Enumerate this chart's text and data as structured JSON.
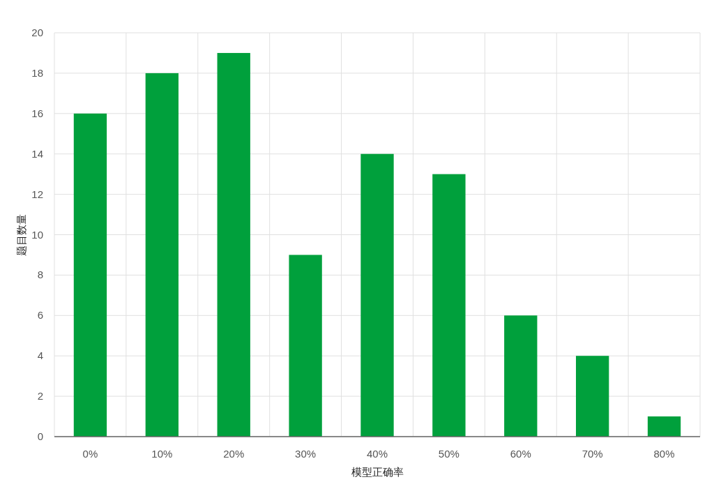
{
  "chart_data": {
    "type": "bar",
    "xlabel": "模型正确率",
    "ylabel": "题目数量",
    "categories": [
      "0%",
      "10%",
      "20%",
      "30%",
      "40%",
      "50%",
      "60%",
      "70%",
      "80%"
    ],
    "values": [
      16,
      18,
      19,
      9,
      14,
      13,
      6,
      4,
      1
    ],
    "color": "#00a03c",
    "ylim": [
      0,
      20
    ],
    "yticks": [
      0,
      2,
      4,
      6,
      8,
      10,
      12,
      14,
      16,
      18,
      20
    ],
    "grid": true
  }
}
